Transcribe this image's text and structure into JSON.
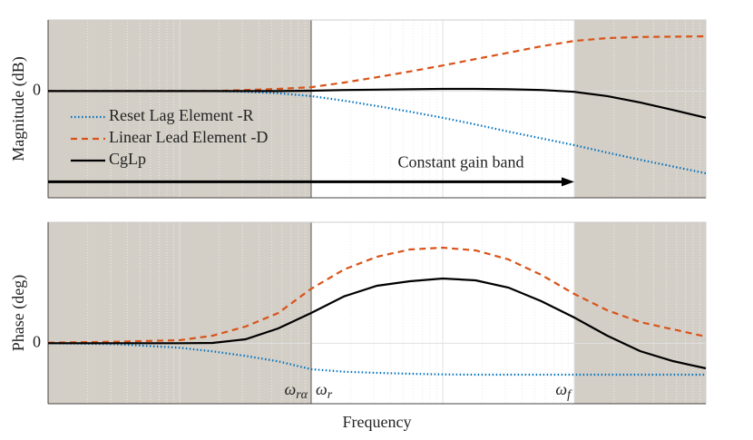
{
  "chart_data": [
    {
      "type": "line",
      "ylabel": "Magnitude (dB)",
      "xscale": "log",
      "xlim": [
        1,
        100000
      ],
      "ylim": [
        -30,
        20
      ],
      "yticks": [
        0
      ],
      "grid": true,
      "shaded_regions": [
        [
          1,
          100
        ],
        [
          10000,
          100000
        ]
      ],
      "x": [
        1,
        3.16,
        10,
        17.8,
        31.6,
        56.2,
        100,
        178,
        316,
        562,
        1000,
        1778,
        3162,
        5623,
        10000,
        17783,
        31623,
        56234,
        100000
      ],
      "series": [
        {
          "name": "Reset Lag Element -R",
          "color": "#0072bd",
          "style": "dotted",
          "values": [
            0,
            0,
            0,
            0,
            -0.2,
            -0.6,
            -1.4,
            -2.7,
            -4.2,
            -5.8,
            -7.5,
            -9.4,
            -11.4,
            -13.3,
            -15.2,
            -17.3,
            -19.3,
            -21.2,
            -23.1
          ]
        },
        {
          "name": "Linear Lead Element -D",
          "color": "#d95319",
          "style": "dashed",
          "values": [
            0,
            0,
            0,
            0,
            0.3,
            0.6,
            1.1,
            2.4,
            3.9,
            5.5,
            7.2,
            9,
            10.8,
            12.6,
            14.1,
            14.9,
            15.2,
            15.3,
            15.4
          ]
        },
        {
          "name": "CgLp",
          "color": "#000000",
          "style": "solid",
          "values": [
            0,
            0,
            0,
            0,
            0,
            0,
            0.1,
            0.3,
            0.4,
            0.5,
            0.6,
            0.6,
            0.5,
            0.3,
            -0.2,
            -1.4,
            -3.2,
            -5.3,
            -7.5
          ]
        }
      ],
      "legend": "upper left",
      "arrow": {
        "text": "Constant gain band",
        "from": 1,
        "to": 10000,
        "y": -25.5
      }
    },
    {
      "type": "line",
      "ylabel": "Phase (deg)",
      "xlabel": "Frequency",
      "xscale": "log",
      "xlim": [
        1,
        100000
      ],
      "ylim": [
        -20,
        40
      ],
      "yticks": [
        0
      ],
      "grid": true,
      "shaded_regions": [
        [
          1,
          100
        ],
        [
          10000,
          100000
        ]
      ],
      "x": [
        1,
        3.16,
        10,
        17.8,
        31.6,
        56.2,
        100,
        178,
        316,
        562,
        1000,
        1778,
        3162,
        5623,
        10000,
        17783,
        31623,
        56234,
        100000
      ],
      "series": [
        {
          "name": "Reset Lag Element -R",
          "color": "#0072bd",
          "style": "dotted",
          "values": [
            0,
            -0.3,
            -1.5,
            -2.7,
            -4.2,
            -6.0,
            -8.6,
            -9.4,
            -9.8,
            -10.1,
            -10.3,
            -10.4,
            -10.4,
            -10.4,
            -10.4,
            -10.4,
            -10.4,
            -10.4,
            -10.4
          ]
        },
        {
          "name": "Linear Lead Element -D",
          "color": "#d95319",
          "style": "dashed",
          "values": [
            0.2,
            0.5,
            1,
            2.5,
            5.5,
            10,
            18,
            24.4,
            28.6,
            31,
            31.6,
            30.7,
            27.7,
            22.6,
            16.3,
            10.9,
            7,
            4.6,
            2.2
          ]
        },
        {
          "name": "CgLp",
          "color": "#000000",
          "style": "solid",
          "values": [
            0,
            0,
            0,
            0.1,
            1.3,
            4.9,
            10,
            15.5,
            19,
            20.5,
            21.4,
            20.8,
            18.4,
            13.9,
            8.5,
            2.5,
            -2.6,
            -5.9,
            -8.3
          ]
        }
      ],
      "annotations": [
        {
          "text": "ω",
          "sub": "rα",
          "x": 100
        },
        {
          "text": "ω",
          "sub": "r",
          "x": 100
        },
        {
          "text": "ω",
          "sub": "f",
          "x": 10000
        }
      ]
    }
  ]
}
